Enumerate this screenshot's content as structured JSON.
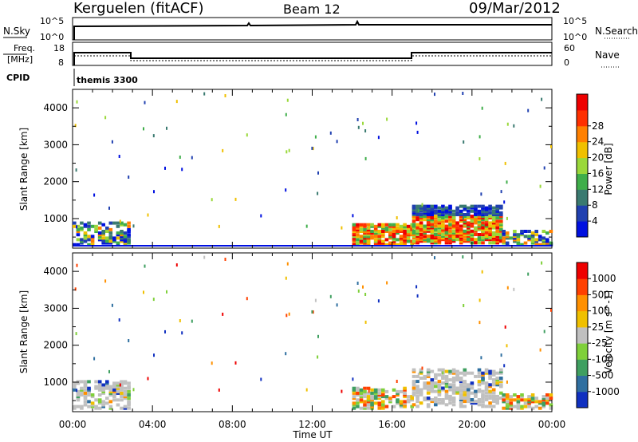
{
  "header": {
    "station": "Kerguelen (fitACF)",
    "beam": "Beam 12",
    "date": "09/Mar/2012"
  },
  "noise_panel": {
    "left_label": "N.Sky",
    "right_label": "N.Search",
    "left_ticks": [
      "10^5",
      "10^0"
    ],
    "right_ticks": [
      "10^5",
      "10^0"
    ]
  },
  "freq_panel": {
    "left_label_1": "Freq.",
    "left_label_2": "[MHz]",
    "left_ticks": [
      "18",
      "8"
    ],
    "right_label": "Nave",
    "right_ticks": [
      "60",
      "0"
    ],
    "cpid_label": "CPID",
    "cpid_value": "themis 3300"
  },
  "chart_data": [
    {
      "type": "heatmap",
      "title": "",
      "ylabel": "Slant Range [km]",
      "xlabel": "",
      "x_ticks": [
        "00:00",
        "04:00",
        "08:00",
        "12:00",
        "16:00",
        "20:00",
        "00:00"
      ],
      "y_ticks": [
        "1000",
        "2000",
        "3000",
        "4000"
      ],
      "ylim": [
        200,
        4500
      ],
      "xlim_hours": [
        0,
        24
      ],
      "colorbar": {
        "label": "Power [dB]",
        "ticks": [
          "4",
          "8",
          "12",
          "16",
          "20",
          "24",
          "28"
        ],
        "colors": [
          "#0010e0",
          "#2040b0",
          "#3a7a70",
          "#3fae4a",
          "#9ad83a",
          "#f0c000",
          "#ff8000",
          "#ff3000",
          "#ee0000"
        ]
      },
      "regions": [
        {
          "t0": 0.0,
          "t1": 2.8,
          "r0": 250,
          "r1": 850,
          "level": "low-mid"
        },
        {
          "t0": 14.0,
          "t1": 17.0,
          "r0": 250,
          "r1": 800,
          "level": "high"
        },
        {
          "t0": 17.0,
          "t1": 21.5,
          "r0": 300,
          "r1": 1300,
          "level": "high"
        },
        {
          "t0": 21.5,
          "t1": 24.0,
          "r0": 250,
          "r1": 650,
          "level": "low-mid"
        }
      ]
    },
    {
      "type": "heatmap",
      "title": "",
      "ylabel": "Slant Range [km]",
      "xlabel": "Time UT",
      "x_ticks": [
        "00:00",
        "04:00",
        "08:00",
        "12:00",
        "16:00",
        "20:00",
        "00:00"
      ],
      "y_ticks": [
        "1000",
        "2000",
        "3000",
        "4000"
      ],
      "ylim": [
        200,
        4500
      ],
      "xlim_hours": [
        0,
        24
      ],
      "colorbar": {
        "label": "Velocity [m s^-1]",
        "ticks": [
          "1000",
          "500",
          "100",
          "25",
          "-25",
          "-100",
          "-500",
          "-1000"
        ],
        "colors": [
          "#1030c0",
          "#2f6fa0",
          "#3f9f60",
          "#7fd03a",
          "#c0c0c0",
          "#f0c000",
          "#ff9000",
          "#ff4000",
          "#ee0000"
        ]
      },
      "regions": [
        {
          "t0": 0.0,
          "t1": 2.8,
          "r0": 250,
          "r1": 1000,
          "level": "ground-scatter"
        },
        {
          "t0": 14.0,
          "t1": 17.0,
          "r0": 250,
          "r1": 800,
          "level": "mixed"
        },
        {
          "t0": 17.0,
          "t1": 21.5,
          "r0": 300,
          "r1": 1300,
          "level": "ground-scatter"
        },
        {
          "t0": 21.5,
          "t1": 24.0,
          "r0": 250,
          "r1": 650,
          "level": "mixed"
        }
      ]
    }
  ]
}
